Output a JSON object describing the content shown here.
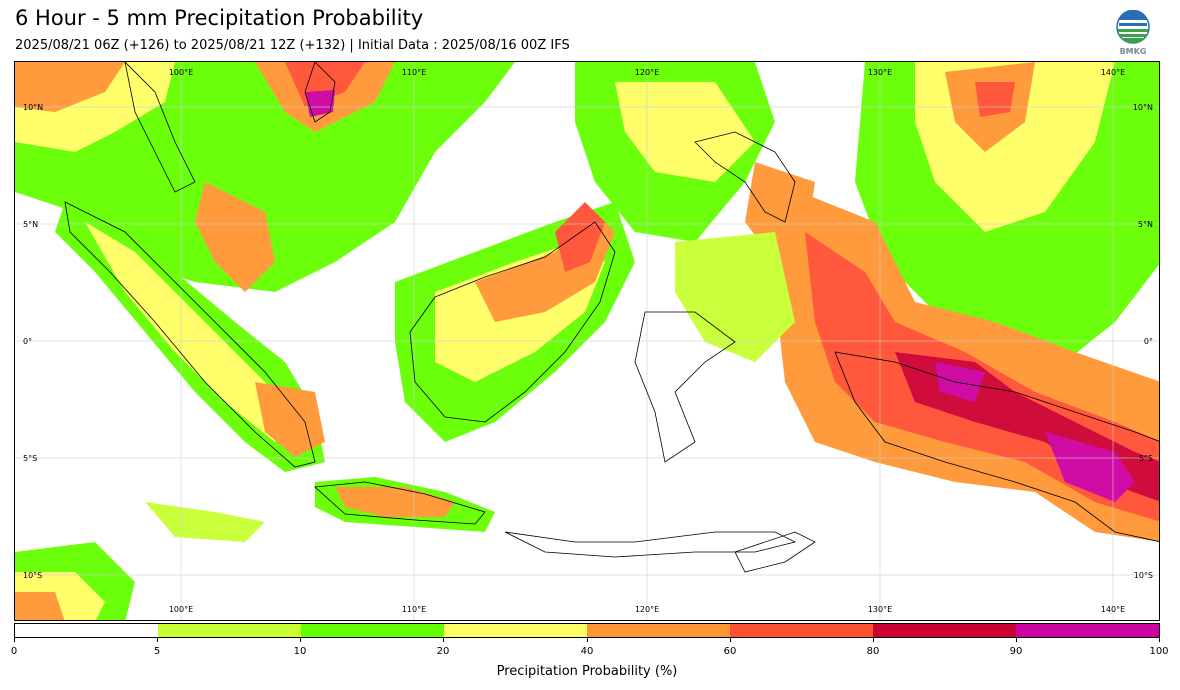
{
  "header": {
    "title": "6 Hour - 5 mm Precipitation Probability",
    "subtitle": "2025/08/21 06Z (+126) to 2025/08/21 12Z (+132) | Initial Data : 2025/08/16 00Z IFS"
  },
  "logo": {
    "name": "BMKG"
  },
  "map": {
    "longitude_labels": [
      "100°E",
      "110°E",
      "120°E",
      "130°E",
      "140°E"
    ],
    "latitude_labels": [
      "10°N",
      "5°N",
      "0°",
      "5°S",
      "10°S"
    ]
  },
  "colorbar": {
    "title": "Precipitation Probability (%)",
    "tick_labels": [
      "0",
      "5",
      "10",
      "20",
      "40",
      "60",
      "80",
      "90",
      "100"
    ],
    "colors": [
      "#ffffff",
      "#c8ff32",
      "#64ff00",
      "#ffff64",
      "#ff9632",
      "#ff5032",
      "#cd0032",
      "#cd00a0"
    ]
  }
}
